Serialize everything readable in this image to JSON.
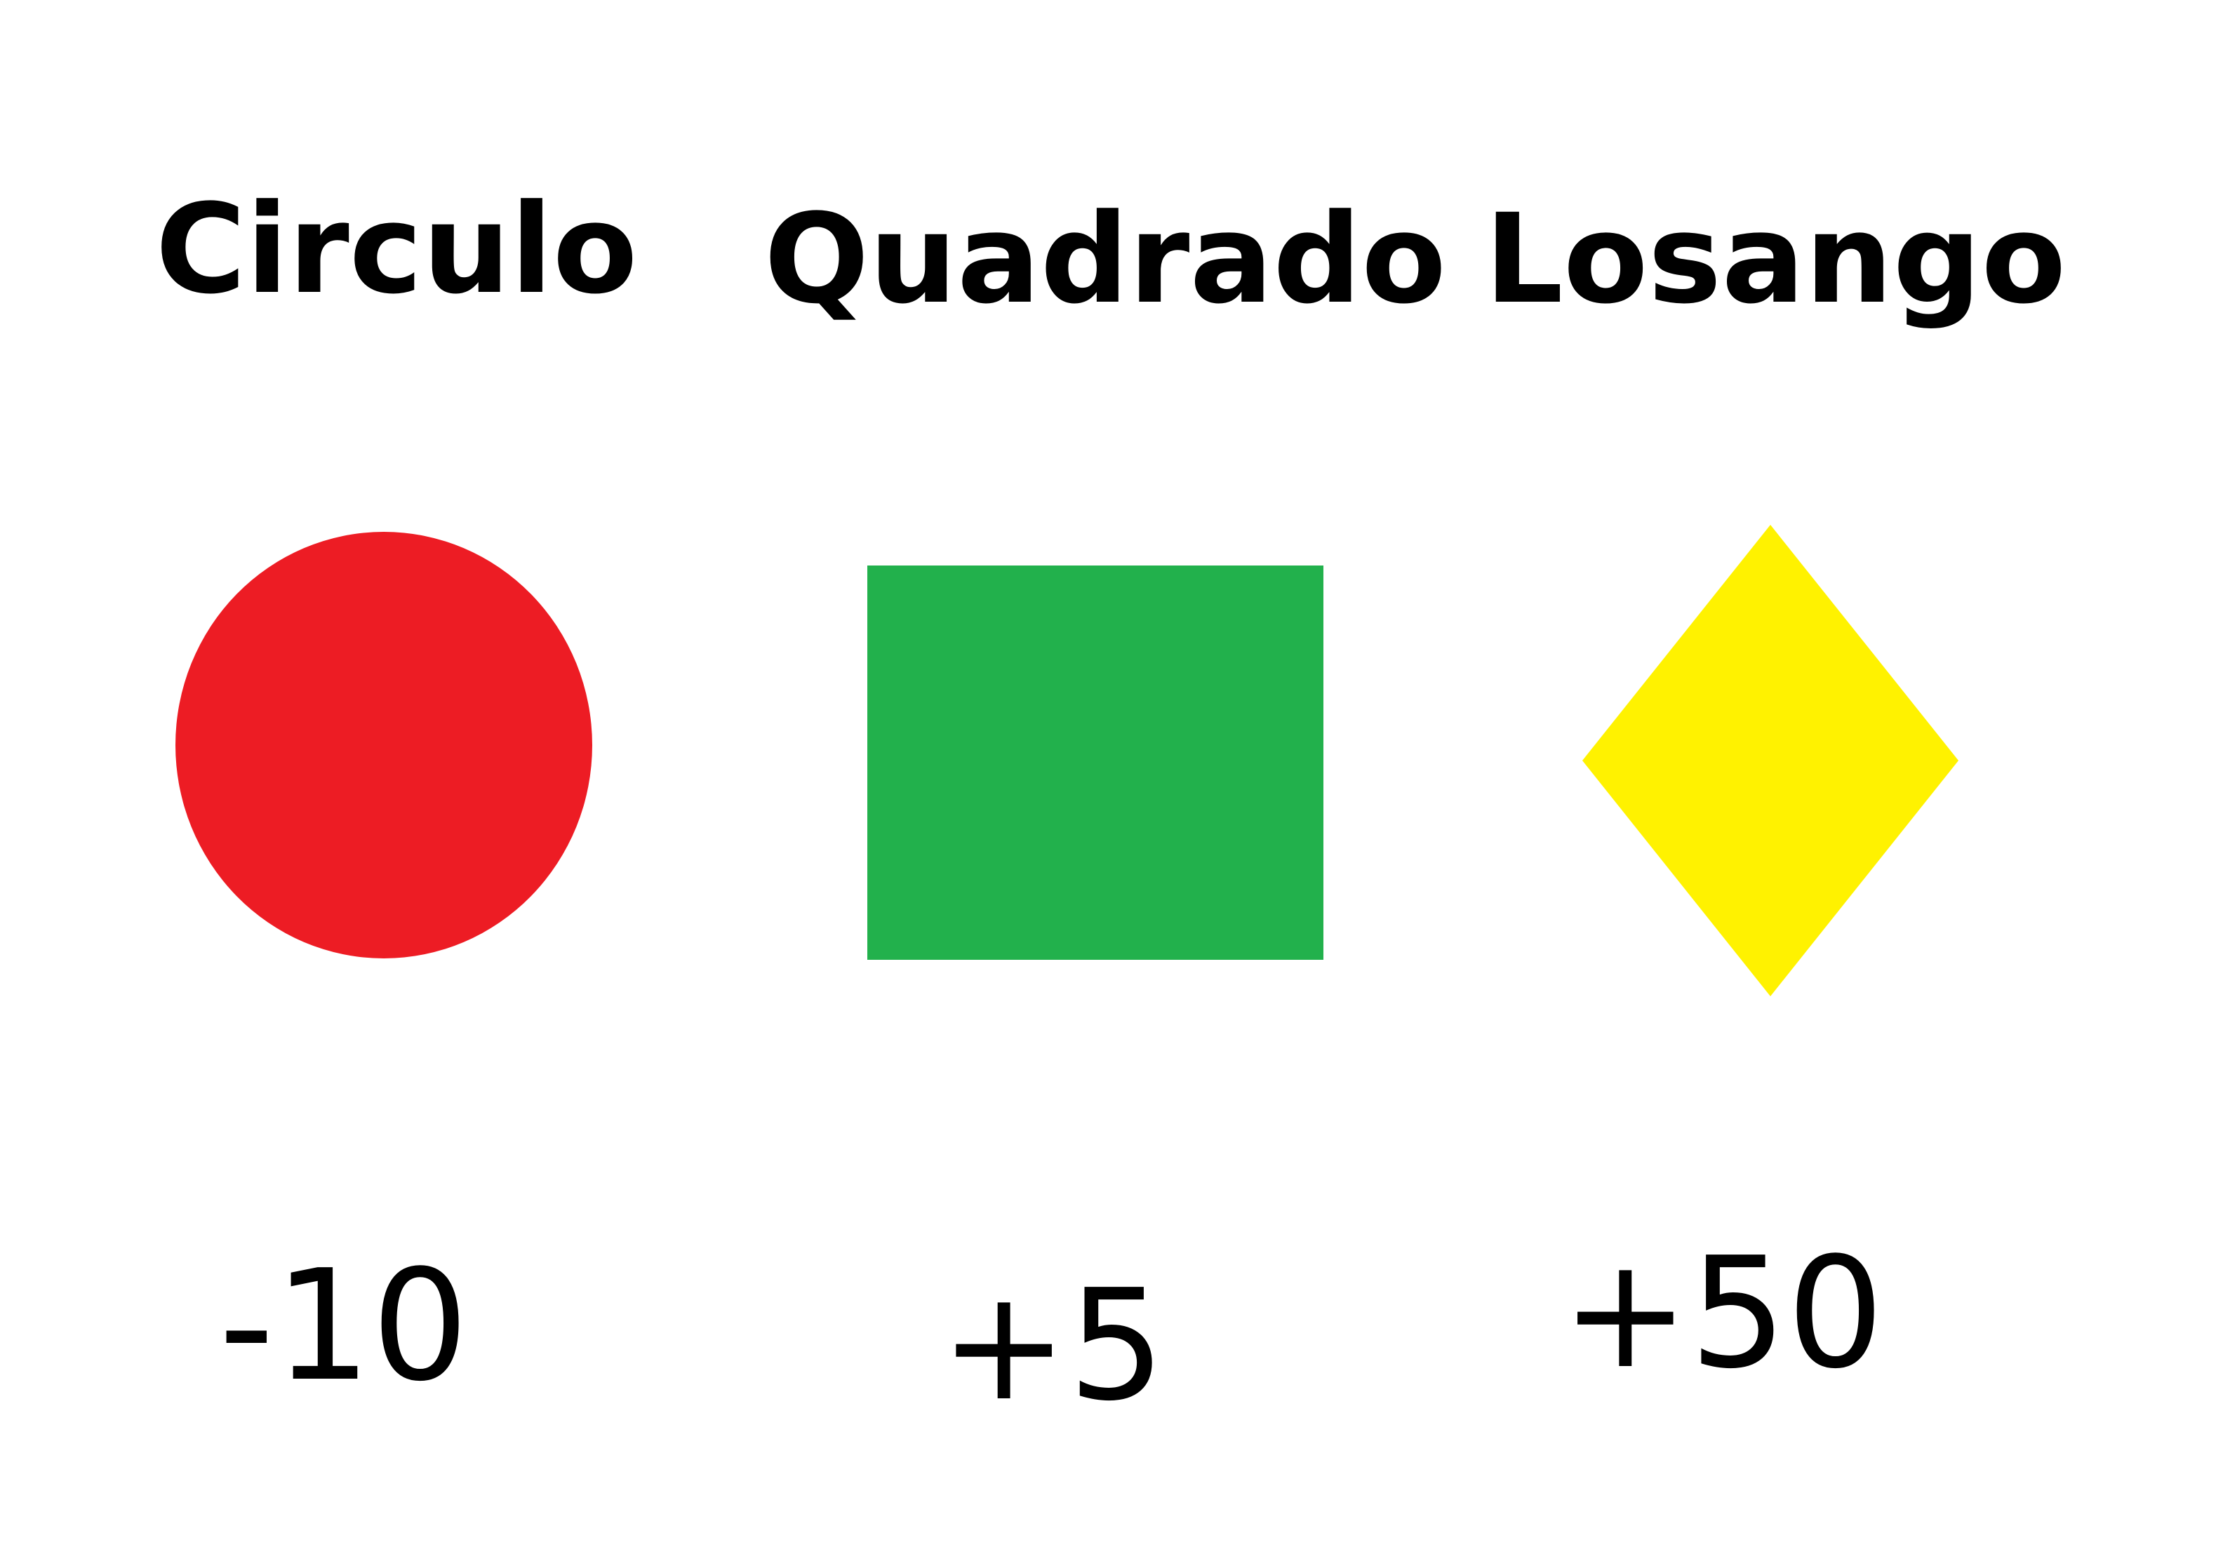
{
  "shapes": [
    {
      "label": "Circulo",
      "score": "-10",
      "color": "#ed1c24",
      "icon": "circle-shape"
    },
    {
      "label": "Quadrado",
      "score": "+5",
      "color": "#22b14c",
      "icon": "square-shape"
    },
    {
      "label": "Losango",
      "score": "+50",
      "color": "#fff200",
      "icon": "diamond-shape"
    }
  ]
}
